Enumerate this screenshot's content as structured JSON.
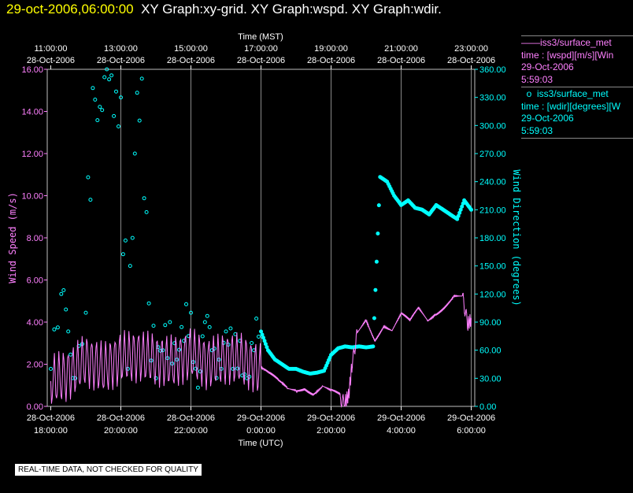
{
  "title": {
    "date": "29-oct-2006,06:00:00",
    "graphs": "XY Graph:xy-grid.  XY Graph:wspd.  XY Graph:wdir."
  },
  "legend": {
    "series1": {
      "name": "iss3/surface_met",
      "desc": "time : [wspd][m/s][Win",
      "date": "29-Oct-2006",
      "time": "5:59:03",
      "color": "#ff80ff"
    },
    "series2": {
      "name": "iss3/surface_met",
      "desc": "time : [wdir][degrees][W",
      "date": "29-Oct-2006",
      "time": "5:59:03",
      "color": "#00ffff"
    }
  },
  "footer": "REAL-TIME DATA, NOT CHECKED FOR QUALITY",
  "chart_data": {
    "type": "line",
    "x_range_hours": [
      -0.1,
      12.1
    ],
    "top_axis": {
      "label": "Time (MST)",
      "ticks": [
        {
          "h": 0,
          "time": "11:00:00",
          "date": "28-Oct-2006"
        },
        {
          "h": 2,
          "time": "13:00:00",
          "date": "28-Oct-2006"
        },
        {
          "h": 4,
          "time": "15:00:00",
          "date": "28-Oct-2006"
        },
        {
          "h": 6,
          "time": "17:00:00",
          "date": "28-Oct-2006"
        },
        {
          "h": 8,
          "time": "19:00:00",
          "date": "28-Oct-2006"
        },
        {
          "h": 10,
          "time": "21:00:00",
          "date": "28-Oct-2006"
        },
        {
          "h": 12,
          "time": "23:00:00",
          "date": "28-Oct-2006"
        }
      ]
    },
    "bottom_axis": {
      "label": "Time (UTC)",
      "ticks": [
        {
          "h": 0,
          "date": "28-Oct-2006",
          "time": "18:00:00"
        },
        {
          "h": 2,
          "date": "28-Oct-2006",
          "time": "20:00:00"
        },
        {
          "h": 4,
          "date": "28-Oct-2006",
          "time": "22:00:00"
        },
        {
          "h": 6,
          "date": "29-Oct-2006",
          "time": "0:00:00"
        },
        {
          "h": 8,
          "date": "29-Oct-2006",
          "time": "2:00:00"
        },
        {
          "h": 10,
          "date": "29-Oct-2006",
          "time": "4:00:00"
        },
        {
          "h": 12,
          "date": "29-Oct-2006",
          "time": "6:00:00"
        }
      ]
    },
    "grid_hours": [
      2,
      4,
      6,
      8,
      10,
      12
    ],
    "left_axis": {
      "label": "Wind Speed (m/s)",
      "range": [
        0,
        16
      ],
      "ticks": [
        "0.00",
        "2.00",
        "4.00",
        "6.00",
        "8.00",
        "10.00",
        "12.00",
        "14.00",
        "16.00"
      ],
      "color": "#ff80ff"
    },
    "right_axis": {
      "label": "Wind Direction (degrees)",
      "range": [
        0,
        360
      ],
      "ticks": [
        "0.00",
        "30.00",
        "60.00",
        "90.00",
        "120.00",
        "150.00",
        "180.00",
        "210.00",
        "240.00",
        "270.00",
        "300.00",
        "330.00",
        "360.00"
      ],
      "color": "#00ffff"
    },
    "series": [
      {
        "name": "wspd",
        "kind": "line",
        "color": "#ff80ff",
        "x": [
          0.0,
          0.5,
          1.0,
          1.5,
          2.0,
          2.5,
          3.0,
          3.5,
          4.0,
          4.5,
          5.0,
          5.5,
          6.0,
          6.25,
          6.5,
          6.75,
          7.0,
          7.25,
          7.5,
          7.75,
          8.0,
          8.25,
          8.4,
          8.5,
          8.6,
          8.75,
          9.0,
          9.25,
          9.5,
          9.75,
          10.0,
          10.25,
          10.5,
          10.75,
          11.0,
          11.25,
          11.5,
          11.75,
          11.9,
          12.0
        ],
        "y": [
          1.2,
          1.5,
          2.2,
          1.8,
          2.3,
          2.4,
          2.2,
          2.1,
          2.5,
          2.0,
          2.3,
          2.2,
          1.7,
          1.3,
          1.0,
          0.8,
          0.9,
          1.1,
          0.8,
          1.0,
          0.6,
          0.3,
          0.2,
          0.5,
          2.0,
          3.5,
          4.3,
          3.4,
          4.0,
          3.6,
          4.2,
          3.8,
          4.5,
          4.1,
          4.6,
          5.0,
          5.4,
          5.2,
          3.9,
          4.1
        ]
      },
      {
        "name": "wdir",
        "kind": "scatter",
        "color": "#00ffff",
        "scatter_scale": 22.5,
        "x": [
          0.0,
          0.3,
          0.5,
          0.7,
          1.0,
          1.2,
          1.4,
          1.6,
          1.8,
          2.0,
          2.2,
          2.4,
          2.6,
          2.8,
          3.0,
          3.2,
          3.4,
          3.6,
          3.8,
          4.0,
          4.2,
          4.4,
          4.6,
          4.8,
          5.0,
          5.2,
          5.4,
          5.6,
          5.8,
          6.0,
          6.2,
          6.4,
          6.6,
          6.8,
          7.0,
          7.2,
          7.4,
          7.6,
          7.8,
          8.0,
          8.2,
          8.4,
          8.6,
          8.8,
          9.0,
          9.2,
          9.4,
          9.6,
          9.8,
          10.0,
          10.2,
          10.4,
          10.6,
          10.8,
          11.0,
          11.2,
          11.4,
          11.6,
          11.8,
          12.0
        ],
        "y": [
          40,
          120,
          80,
          30,
          100,
          340,
          320,
          360,
          310,
          330,
          40,
          270,
          350,
          110,
          30,
          60,
          90,
          50,
          70,
          100,
          20,
          90,
          60,
          50,
          80,
          40,
          70,
          30,
          60,
          80,
          60,
          50,
          45,
          40,
          40,
          37,
          35,
          36,
          38,
          55,
          62,
          64,
          63,
          64,
          63,
          64,
          245,
          240,
          225,
          215,
          220,
          212,
          210,
          205,
          215,
          210,
          205,
          200,
          220,
          210
        ]
      }
    ]
  }
}
